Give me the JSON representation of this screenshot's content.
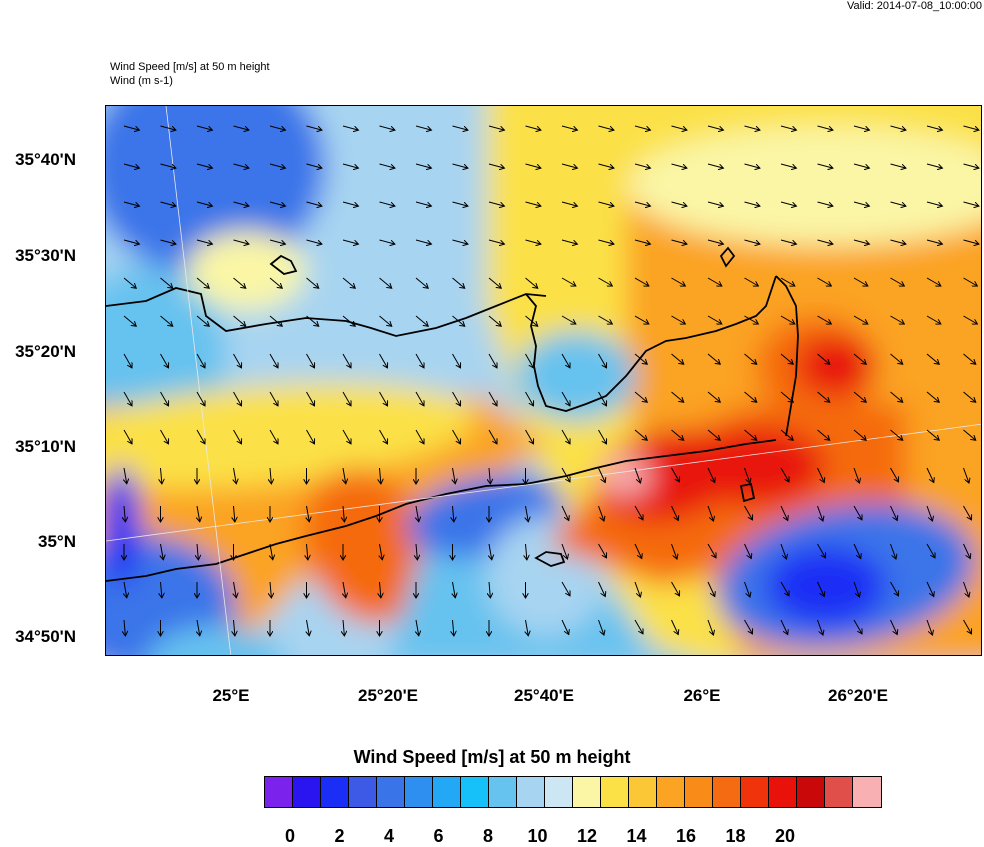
{
  "valid_text": "Valid: 2014-07-08_10:00:00",
  "title_line1": "Wind Speed [m/s] at 50 m height",
  "title_line2": "Wind   (m s-1)",
  "lat_labels": [
    "35°40'N",
    "35°30'N",
    "35°20'N",
    "35°10'N",
    "35°N",
    "34°50'N"
  ],
  "lon_labels": [
    "25°E",
    "25°20'E",
    "25°40'E",
    "26°E",
    "26°20'E"
  ],
  "legend": {
    "title": "Wind Speed [m/s] at 50 m height",
    "colors": [
      "#7b22ec",
      "#2a14f0",
      "#1a2ef5",
      "#3d5ae6",
      "#3a74e9",
      "#2f8ff0",
      "#22a8f5",
      "#16c0f8",
      "#66c2ef",
      "#a7d4f1",
      "#cde6f3",
      "#faf6a6",
      "#fbe146",
      "#fbc737",
      "#fba323",
      "#f98c19",
      "#f56b11",
      "#f0330b",
      "#e8120a",
      "#c9080a",
      "#e04f4a",
      "#f8b0b3"
    ],
    "labels": [
      "0",
      "2",
      "4",
      "6",
      "8",
      "10",
      "12",
      "14",
      "16",
      "18",
      "20"
    ]
  },
  "map_colors": {
    "sea_calm": "#a7d4f1",
    "deep_blue": "#1a2ef5",
    "mid_blue": "#3a74e9",
    "light_blue": "#66c2ef",
    "yellow": "#fbe146",
    "pale_yellow": "#faf6a6",
    "orange": "#fba323",
    "dark_orange": "#f56b11",
    "red": "#e8120a",
    "dark_red": "#c9080a",
    "pink": "#f8b0b3"
  }
}
